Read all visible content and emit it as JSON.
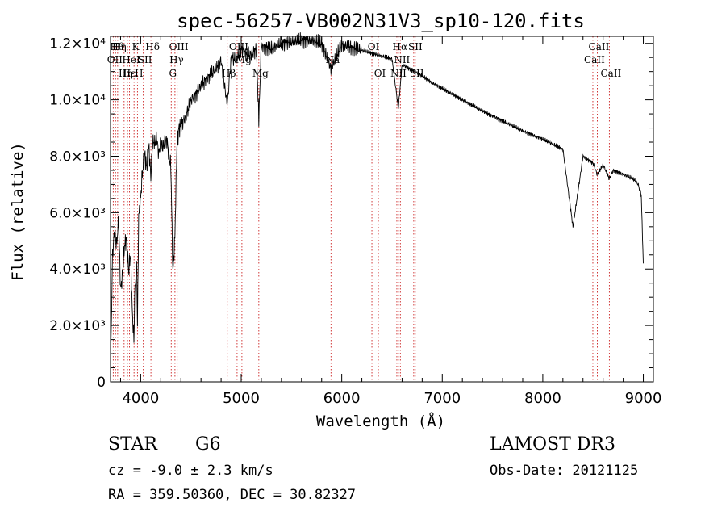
{
  "chart_data": {
    "type": "line",
    "title": "spec-56257-VB002N31V3_sp10-120.fits",
    "xlabel": "Wavelength (Å)",
    "ylabel": "Flux (relative)",
    "xlim": [
      3700,
      9100
    ],
    "ylim": [
      0,
      12250
    ],
    "x_ticks": [
      4000,
      5000,
      6000,
      7000,
      8000,
      9000
    ],
    "y_ticks": [
      {
        "value": 0,
        "label": "0"
      },
      {
        "value": 2000,
        "label": "2.0×10³"
      },
      {
        "value": 4000,
        "label": "4.0×10³"
      },
      {
        "value": 6000,
        "label": "6.0×10³"
      },
      {
        "value": 8000,
        "label": "8.0×10³"
      },
      {
        "value": 10000,
        "label": "1.0×10⁴"
      },
      {
        "value": 12000,
        "label": "1.2×10⁴"
      }
    ],
    "grid": false,
    "series": [
      {
        "name": "spectrum",
        "x": [
          3700,
          3720,
          3740,
          3760,
          3780,
          3800,
          3820,
          3840,
          3860,
          3880,
          3900,
          3920,
          3933,
          3940,
          3960,
          3968,
          3980,
          4000,
          4020,
          4040,
          4060,
          4080,
          4101,
          4120,
          4140,
          4160,
          4180,
          4200,
          4220,
          4240,
          4260,
          4280,
          4300,
          4320,
          4340,
          4360,
          4380,
          4400,
          4450,
          4500,
          4550,
          4600,
          4650,
          4700,
          4750,
          4800,
          4861,
          4900,
          4950,
          5000,
          5050,
          5100,
          5150,
          5175,
          5200,
          5300,
          5400,
          5500,
          5600,
          5700,
          5800,
          5893,
          6000,
          6100,
          6200,
          6300,
          6400,
          6500,
          6563,
          6600,
          6700,
          6800,
          6900,
          7000,
          7200,
          7400,
          7600,
          7800,
          8000,
          8200,
          8300,
          8400,
          8500,
          8542,
          8600,
          8662,
          8700,
          8800,
          8900,
          8950,
          8980,
          9000
        ],
        "values": [
          300,
          4500,
          5400,
          4800,
          5800,
          3200,
          3900,
          4800,
          5100,
          3900,
          4500,
          2200,
          1500,
          3000,
          4300,
          2000,
          5800,
          6600,
          7500,
          8100,
          7600,
          8400,
          7300,
          8500,
          8500,
          8600,
          8100,
          8500,
          8300,
          8500,
          8600,
          8000,
          7700,
          3800,
          5200,
          8300,
          9000,
          9100,
          9400,
          10000,
          10200,
          10500,
          10700,
          10900,
          11100,
          11400,
          9800,
          11500,
          11400,
          11800,
          11600,
          11600,
          11800,
          9300,
          11900,
          11800,
          12000,
          12050,
          12100,
          12100,
          12000,
          11100,
          11950,
          11850,
          11750,
          11650,
          11550,
          11450,
          9700,
          11250,
          11050,
          10850,
          10600,
          10400,
          10000,
          9600,
          9250,
          8900,
          8600,
          8250,
          5500,
          8000,
          7750,
          7350,
          7700,
          7200,
          7500,
          7350,
          7200,
          7000,
          6600,
          4200
        ]
      }
    ],
    "lines": [
      {
        "w": 3727,
        "label": "OII",
        "row": 2
      },
      {
        "w": 3750,
        "label": "Hθ",
        "row": 1
      },
      {
        "w": 3771,
        "label": "Hη",
        "row": 1
      },
      {
        "w": 3835,
        "label": "Hη",
        "row": 3
      },
      {
        "w": 3869,
        "label": "Hε",
        "row": 3
      },
      {
        "w": 3889,
        "label": "HeI",
        "row": 2
      },
      {
        "w": 3934,
        "label": "K",
        "row": 1
      },
      {
        "w": 3968,
        "label": "H",
        "row": 3
      },
      {
        "w": 4026,
        "label": "SII",
        "row": 2
      },
      {
        "w": 4102,
        "label": "Hδ",
        "row": 1
      },
      {
        "w": 4304,
        "label": "G",
        "row": 3
      },
      {
        "w": 4341,
        "label": "Hγ",
        "row": 2
      },
      {
        "w": 4363,
        "label": "OIII",
        "row": 1
      },
      {
        "w": 4861,
        "label": "Hβ",
        "row": 3
      },
      {
        "w": 4959,
        "label": "OIII",
        "row": 1
      },
      {
        "w": 5007,
        "label": "Mg",
        "row": 2
      },
      {
        "w": 5175,
        "label": "Mg",
        "row": 3
      },
      {
        "w": 5893,
        "label": "Na",
        "row": 2
      },
      {
        "w": 6300,
        "label": "OI",
        "row": 1
      },
      {
        "w": 6364,
        "label": "OI",
        "row": 3
      },
      {
        "w": 6548,
        "label": "NII",
        "row": 3
      },
      {
        "w": 6563,
        "label": "Hα",
        "row": 1
      },
      {
        "w": 6583,
        "label": "NII",
        "row": 2
      },
      {
        "w": 6716,
        "label": "SII",
        "row": 1
      },
      {
        "w": 6731,
        "label": "SII",
        "row": 3
      },
      {
        "w": 8498,
        "label": "CaII",
        "row": 2
      },
      {
        "w": 8542,
        "label": "CaII",
        "row": 1
      },
      {
        "w": 8662,
        "label": "CaII",
        "row": 3
      }
    ]
  },
  "info": {
    "class_label": "STAR",
    "subclass": "G6",
    "survey": "LAMOST DR3",
    "cz": "cz = -9.0 ± 2.3 km/s",
    "obs_date": "Obs-Date: 20121125",
    "coords": "RA = 359.50360, DEC =  30.82327"
  },
  "colors": {
    "axis": "#000000",
    "line_marker": "#cc2222",
    "spectrum": "#000000"
  }
}
